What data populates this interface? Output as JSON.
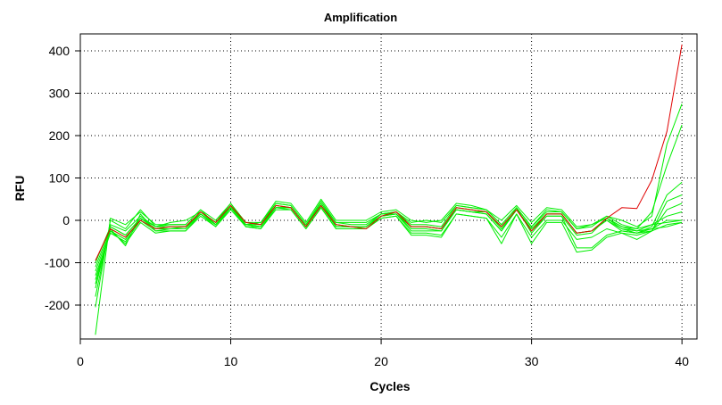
{
  "chart_data": {
    "type": "line",
    "title": "Amplification",
    "xlabel": "Cycles",
    "ylabel": "RFU",
    "xlim": [
      0,
      41
    ],
    "ylim": [
      -280,
      440
    ],
    "xticks": [
      0,
      10,
      20,
      30,
      40
    ],
    "yticks": [
      -200,
      -100,
      0,
      100,
      200,
      300,
      400
    ],
    "grid": true,
    "colors": {
      "amplified": "#e00000",
      "background": "#00ee00"
    },
    "x": [
      1,
      2,
      3,
      4,
      5,
      6,
      7,
      8,
      9,
      10,
      11,
      12,
      13,
      14,
      15,
      16,
      17,
      18,
      19,
      20,
      21,
      22,
      23,
      24,
      25,
      26,
      27,
      28,
      29,
      30,
      31,
      32,
      33,
      34,
      35,
      36,
      37,
      38,
      39,
      40
    ],
    "series": [
      {
        "color": "#e00000",
        "values": [
          -95,
          -20,
          -40,
          0,
          -20,
          -15,
          -15,
          20,
          -5,
          35,
          -5,
          -10,
          35,
          30,
          -15,
          35,
          -10,
          -15,
          -20,
          10,
          20,
          -15,
          -15,
          -20,
          30,
          25,
          20,
          -15,
          25,
          -25,
          15,
          15,
          -30,
          -25,
          5,
          30,
          28,
          95,
          210,
          415
        ]
      },
      {
        "color": "#00ee00",
        "values": [
          -270,
          5,
          -10,
          20,
          -10,
          -10,
          -10,
          25,
          -10,
          30,
          -10,
          -10,
          40,
          35,
          -10,
          45,
          -5,
          -5,
          -5,
          15,
          20,
          -5,
          0,
          -5,
          35,
          30,
          25,
          -10,
          30,
          -15,
          25,
          20,
          -20,
          -10,
          5,
          -20,
          -25,
          -20,
          -15,
          -5
        ]
      },
      {
        "color": "#00ee00",
        "values": [
          -205,
          0,
          -20,
          25,
          -15,
          -5,
          0,
          20,
          -5,
          40,
          -10,
          -5,
          45,
          40,
          -5,
          50,
          0,
          0,
          0,
          20,
          25,
          0,
          -5,
          0,
          40,
          35,
          25,
          0,
          35,
          -5,
          30,
          25,
          -15,
          -10,
          10,
          -10,
          -20,
          -10,
          -5,
          0
        ]
      },
      {
        "color": "#00ee00",
        "values": [
          -180,
          -10,
          -25,
          10,
          -15,
          -15,
          -15,
          15,
          -10,
          30,
          -10,
          -15,
          30,
          30,
          -15,
          35,
          -15,
          -15,
          -15,
          10,
          15,
          -15,
          -15,
          -20,
          25,
          20,
          20,
          -20,
          25,
          -20,
          15,
          15,
          -30,
          -25,
          0,
          -25,
          -30,
          -25,
          -10,
          -5
        ]
      },
      {
        "color": "#00ee00",
        "values": [
          -160,
          -15,
          -35,
          5,
          -20,
          -20,
          -15,
          15,
          -10,
          35,
          -15,
          -15,
          30,
          30,
          -15,
          35,
          -15,
          -15,
          -15,
          10,
          15,
          -15,
          -15,
          -20,
          30,
          25,
          20,
          -15,
          25,
          -20,
          15,
          15,
          -30,
          -25,
          0,
          -20,
          -30,
          -20,
          0,
          0
        ]
      },
      {
        "color": "#00ee00",
        "values": [
          -150,
          -20,
          -60,
          15,
          -25,
          -20,
          -20,
          20,
          -10,
          35,
          -10,
          -15,
          35,
          30,
          -15,
          40,
          -10,
          -15,
          -15,
          15,
          15,
          -25,
          -25,
          -25,
          25,
          20,
          15,
          -25,
          30,
          -30,
          10,
          10,
          -35,
          -30,
          5,
          -15,
          -25,
          -10,
          10,
          20
        ]
      },
      {
        "color": "#00ee00",
        "values": [
          -140,
          -25,
          -55,
          -5,
          -30,
          -25,
          -25,
          10,
          -15,
          25,
          -15,
          -20,
          25,
          25,
          -20,
          30,
          -20,
          -20,
          -20,
          5,
          10,
          -30,
          -30,
          -35,
          15,
          10,
          5,
          -40,
          15,
          -40,
          0,
          0,
          -45,
          -40,
          -20,
          -30,
          -35,
          -25,
          25,
          40
        ]
      },
      {
        "color": "#00ee00",
        "values": [
          -130,
          -30,
          -50,
          0,
          -25,
          -25,
          -25,
          15,
          -15,
          30,
          -15,
          -20,
          30,
          25,
          -20,
          30,
          -20,
          -20,
          -20,
          5,
          10,
          -35,
          -35,
          -40,
          15,
          10,
          5,
          -55,
          15,
          -55,
          -5,
          -5,
          -75,
          -70,
          -40,
          -30,
          -45,
          -25,
          45,
          60
        ]
      },
      {
        "color": "#00ee00",
        "values": [
          -120,
          -25,
          -45,
          5,
          -20,
          -20,
          -20,
          15,
          -10,
          30,
          -10,
          -15,
          30,
          30,
          -15,
          35,
          -15,
          -15,
          -15,
          10,
          15,
          -20,
          -20,
          -25,
          25,
          20,
          15,
          -25,
          25,
          -25,
          10,
          10,
          -65,
          -65,
          -35,
          -25,
          -30,
          -15,
          60,
          90
        ]
      },
      {
        "color": "#00ee00",
        "values": [
          -110,
          -20,
          -40,
          0,
          -20,
          -15,
          -15,
          20,
          -5,
          35,
          -5,
          -10,
          35,
          30,
          -15,
          35,
          -10,
          -15,
          -20,
          10,
          20,
          -15,
          -15,
          -20,
          30,
          25,
          20,
          -15,
          25,
          -25,
          15,
          15,
          -30,
          -25,
          5,
          -15,
          -20,
          20,
          130,
          225
        ]
      },
      {
        "color": "#00ee00",
        "values": [
          -100,
          -15,
          -35,
          5,
          -15,
          -10,
          -10,
          25,
          0,
          40,
          -5,
          -5,
          40,
          35,
          -10,
          40,
          -5,
          -10,
          -10,
          15,
          20,
          -10,
          -10,
          -15,
          35,
          30,
          25,
          -10,
          30,
          -15,
          20,
          20,
          -20,
          -15,
          10,
          0,
          -15,
          10,
          180,
          275
        ]
      }
    ]
  }
}
